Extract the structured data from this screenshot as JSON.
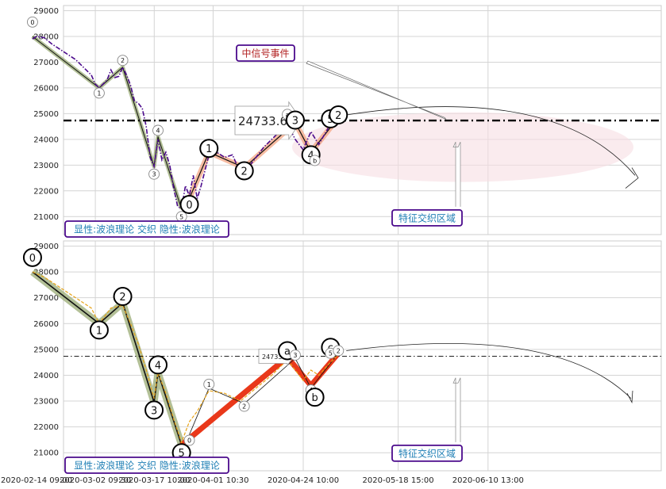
{
  "chart_data": [
    {
      "type": "line",
      "panel": "top",
      "ylim": [
        20300,
        29200
      ],
      "yticks": [
        21000,
        22000,
        23000,
        24000,
        25000,
        26000,
        27000,
        28000,
        29000
      ],
      "grid": true,
      "price_series": {
        "color": "#4b0a8c",
        "style": "dash-dot",
        "points": [
          [
            "02-15",
            27900
          ],
          [
            "02-16",
            28000
          ],
          [
            "02-18",
            27950
          ],
          [
            "02-20",
            27700
          ],
          [
            "02-22",
            27500
          ],
          [
            "02-24",
            27300
          ],
          [
            "02-26",
            27100
          ],
          [
            "02-28",
            26800
          ],
          [
            "03-01",
            26500
          ],
          [
            "03-02",
            26150
          ],
          [
            "03-03",
            26000
          ],
          [
            "03-05",
            26300
          ],
          [
            "03-06",
            26700
          ],
          [
            "03-07",
            26400
          ],
          [
            "03-08",
            26450
          ],
          [
            "03-09",
            26800
          ],
          [
            "03-10",
            26500
          ],
          [
            "03-11",
            26100
          ],
          [
            "03-12",
            25500
          ],
          [
            "03-13",
            25400
          ],
          [
            "03-14",
            25200
          ],
          [
            "03-15",
            24500
          ],
          [
            "03-16",
            23300
          ],
          [
            "03-17",
            22950
          ],
          [
            "03-18",
            24000
          ],
          [
            "03-19",
            23200
          ],
          [
            "03-20",
            23500
          ],
          [
            "03-21",
            23000
          ],
          [
            "03-22",
            22100
          ],
          [
            "03-23",
            21400
          ],
          [
            "03-24",
            21300
          ],
          [
            "03-25",
            22200
          ],
          [
            "03-26",
            21800
          ],
          [
            "03-27",
            22600
          ],
          [
            "03-28",
            21700
          ],
          [
            "03-29",
            22200
          ],
          [
            "03-30",
            22800
          ],
          [
            "03-31",
            23400
          ],
          [
            "04-02",
            23500
          ],
          [
            "04-04",
            23300
          ],
          [
            "04-06",
            23400
          ],
          [
            "04-08",
            22700
          ],
          [
            "04-10",
            22900
          ],
          [
            "04-12",
            23300
          ],
          [
            "04-14",
            23700
          ],
          [
            "04-16",
            24000
          ],
          [
            "04-18",
            24300
          ],
          [
            "04-20",
            24600
          ],
          [
            "04-22",
            24000
          ],
          [
            "04-24",
            23600
          ],
          [
            "04-26",
            24300
          ],
          [
            "04-28",
            23800
          ],
          [
            "05-01",
            24600
          ],
          [
            "05-03",
            24900
          ]
        ]
      },
      "wave_labels": [
        {
          "label": "0",
          "date": "02-15",
          "value": 28560,
          "size": "small"
        },
        {
          "label": "1",
          "date": "03-03",
          "value": 25800,
          "size": "small"
        },
        {
          "label": "2",
          "date": "03-09",
          "value": 27070,
          "size": "small"
        },
        {
          "label": "3",
          "date": "03-17",
          "value": 22650,
          "size": "small"
        },
        {
          "label": "4",
          "date": "03-18",
          "value": 24350,
          "size": "small"
        },
        {
          "label": "5",
          "date": "03-24",
          "value": 21000,
          "size": "small"
        },
        {
          "label": "0",
          "date": "03-26",
          "value": 21470,
          "size": "large"
        },
        {
          "label": "1",
          "date": "03-31",
          "value": 23650,
          "size": "large"
        },
        {
          "label": "2",
          "date": "04-09",
          "value": 22780,
          "size": "large"
        },
        {
          "label": "a",
          "date": "04-20",
          "value": 24970,
          "size": "small"
        },
        {
          "label": "3",
          "date": "04-22",
          "value": 24750,
          "size": "large"
        },
        {
          "label": "4",
          "date": "04-26",
          "value": 23400,
          "size": "large"
        },
        {
          "label": "b",
          "date": "04-27",
          "value": 23180,
          "size": "small"
        },
        {
          "label": "c",
          "date": "05-01",
          "value": 24900,
          "size": "small"
        },
        {
          "label": "5",
          "date": "05-01",
          "value": 24800,
          "size": "large"
        },
        {
          "label": "2",
          "date": "05-03",
          "value": 24950,
          "size": "large"
        }
      ],
      "level_line": {
        "value": 24733.6,
        "label": "24733.60",
        "style": "dash-dot-thick"
      },
      "callouts": {
        "event": "中信号事件",
        "region": "特征交织区域",
        "legend": "显性:波浪理论 交织 隐性:波浪理论"
      }
    },
    {
      "type": "line",
      "panel": "bottom",
      "ylim": [
        20300,
        29200
      ],
      "yticks": [
        21000,
        22000,
        23000,
        24000,
        25000,
        26000,
        27000,
        28000,
        29000
      ],
      "grid": true,
      "price_series": {
        "color": "#e8a317",
        "style": "dashed",
        "points": [
          [
            "02-15",
            28000
          ],
          [
            "02-18",
            27800
          ],
          [
            "02-22",
            27400
          ],
          [
            "02-26",
            27000
          ],
          [
            "03-01",
            26600
          ],
          [
            "03-03",
            26000
          ],
          [
            "03-06",
            26600
          ],
          [
            "03-09",
            26700
          ],
          [
            "03-11",
            26000
          ],
          [
            "03-13",
            25200
          ],
          [
            "03-15",
            24200
          ],
          [
            "03-17",
            23100
          ],
          [
            "03-18",
            24100
          ],
          [
            "03-20",
            23300
          ],
          [
            "03-22",
            22300
          ],
          [
            "03-24",
            21400
          ],
          [
            "03-26",
            22200
          ],
          [
            "03-28",
            22600
          ],
          [
            "03-31",
            23400
          ],
          [
            "04-04",
            23300
          ],
          [
            "04-08",
            23000
          ],
          [
            "04-12",
            23500
          ],
          [
            "04-16",
            24000
          ],
          [
            "04-20",
            24600
          ],
          [
            "04-24",
            23800
          ],
          [
            "04-26",
            24200
          ],
          [
            "04-28",
            24000
          ],
          [
            "05-01",
            24500
          ],
          [
            "05-03",
            24800
          ]
        ]
      },
      "wave_labels": [
        {
          "label": "0",
          "date": "02-15",
          "value": 28560,
          "size": "large"
        },
        {
          "label": "1",
          "date": "03-03",
          "value": 25750,
          "size": "large"
        },
        {
          "label": "2",
          "date": "03-09",
          "value": 27050,
          "size": "large"
        },
        {
          "label": "3",
          "date": "03-17",
          "value": 22650,
          "size": "large"
        },
        {
          "label": "4",
          "date": "03-18",
          "value": 24400,
          "size": "large"
        },
        {
          "label": "5",
          "date": "03-24",
          "value": 21000,
          "size": "large"
        },
        {
          "label": "0",
          "date": "03-26",
          "value": 21480,
          "size": "small"
        },
        {
          "label": "1",
          "date": "03-31",
          "value": 23650,
          "size": "small"
        },
        {
          "label": "2",
          "date": "04-09",
          "value": 22800,
          "size": "small"
        },
        {
          "label": "a",
          "date": "04-20",
          "value": 24950,
          "size": "large"
        },
        {
          "label": "3",
          "date": "04-22",
          "value": 24780,
          "size": "small"
        },
        {
          "label": "4",
          "date": "04-26",
          "value": 23430,
          "size": "small"
        },
        {
          "label": "b",
          "date": "04-27",
          "value": 23150,
          "size": "large"
        },
        {
          "label": "c",
          "date": "05-01",
          "value": 25080,
          "size": "large"
        },
        {
          "label": "5",
          "date": "05-01",
          "value": 24850,
          "size": "small"
        },
        {
          "label": "2",
          "date": "05-03",
          "value": 24950,
          "size": "small"
        }
      ],
      "level_line": {
        "value": 24733.6,
        "label": "24733.60",
        "style": "dash-dot-thin"
      },
      "callouts": {
        "region": "特征交织区域",
        "legend": "显性:波浪理论 交织 隐性:波浪理论"
      }
    }
  ],
  "x_axis": {
    "tick_labels": [
      "2020-02-14 09:00",
      "2020-03-02 09:30",
      "2020-03-17 10:00",
      "2020-04-01 10:30",
      "2020-04-24 10:00",
      "2020-05-18 15:00",
      "2020-06-10 13:00"
    ]
  },
  "colors": {
    "top_series": "#4b0a8c",
    "bottom_series": "#e8a317",
    "impulse_down": "#9aab74",
    "wave_up": "#e9381a",
    "zone": "#f7dde3",
    "callout_border": "#4b0a8c",
    "callout_text_event": "#b22222",
    "callout_text_region": "#1f7fb5"
  }
}
